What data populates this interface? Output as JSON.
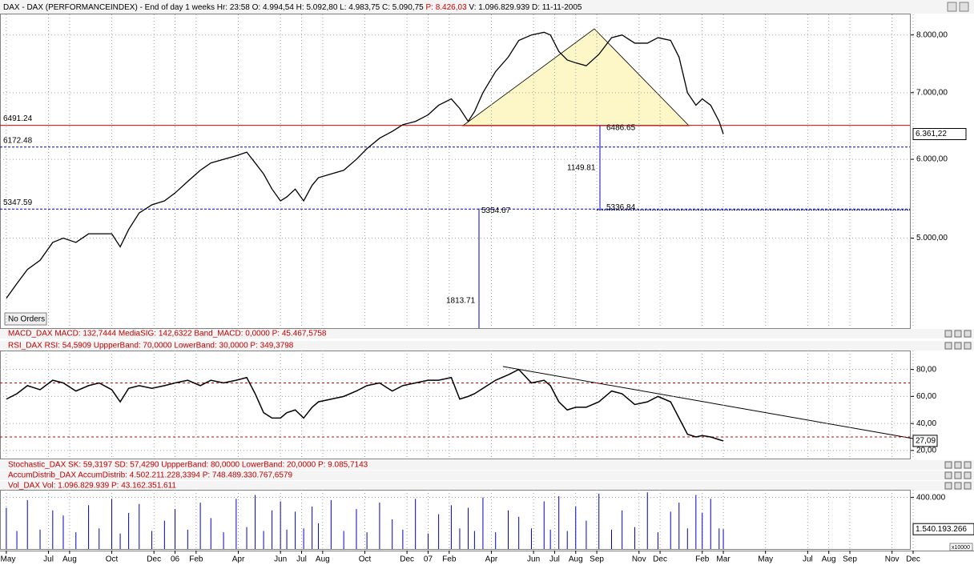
{
  "header": {
    "title": "DAX - DAX (PERFORMANCEINDEX) - End of day 1 weeks Hr: 23:58  O: 4.994,54  H: 5.092,80  L: 4.983,75  C: 5.090,75  ",
    "price_info": "P: 8.426,03",
    "rest": "  V: 1.096.829.939  D: 11-11-2005"
  },
  "xlim": [
    -0.3,
    43
  ],
  "xticks": [
    {
      "value": 0,
      "label": "May"
    },
    {
      "value": 2,
      "label": "Jul"
    },
    {
      "value": 3,
      "label": "Aug"
    },
    {
      "value": 5,
      "label": "Oct"
    },
    {
      "value": 7,
      "label": "Dec"
    },
    {
      "value": 8,
      "label": "06"
    },
    {
      "value": 9,
      "label": "Feb"
    },
    {
      "value": 11,
      "label": "Apr"
    },
    {
      "value": 13,
      "label": "Jun"
    },
    {
      "value": 14,
      "label": "Jul"
    },
    {
      "value": 15,
      "label": "Aug"
    },
    {
      "value": 17,
      "label": "Oct"
    },
    {
      "value": 19,
      "label": "Dec"
    },
    {
      "value": 20,
      "label": "07"
    },
    {
      "value": 21,
      "label": "Feb"
    },
    {
      "value": 23,
      "label": "Apr"
    },
    {
      "value": 25,
      "label": "Jun"
    },
    {
      "value": 26,
      "label": "Jul"
    },
    {
      "value": 27,
      "label": "Aug"
    },
    {
      "value": 28,
      "label": "Sep"
    },
    {
      "value": 30,
      "label": "Nov"
    },
    {
      "value": 31,
      "label": "Dec"
    },
    {
      "value": 33,
      "label": "Feb"
    },
    {
      "value": 34,
      "label": "Mar"
    },
    {
      "value": 36,
      "label": "May"
    },
    {
      "value": 38,
      "label": "Jul"
    },
    {
      "value": 39,
      "label": "Aug"
    },
    {
      "value": 40,
      "label": "Sep"
    },
    {
      "value": 42,
      "label": "Nov"
    },
    {
      "value": 43,
      "label": "Dec"
    }
  ],
  "x": [
    0,
    0.5,
    1,
    1.6,
    2.2,
    2.7,
    3.3,
    3.9,
    4.4,
    5,
    5.4,
    5.8,
    6.3,
    6.9,
    7.5,
    8,
    8.6,
    9.2,
    9.7,
    10.3,
    10.9,
    11.4,
    11.8,
    12.2,
    12.6,
    13,
    13.3,
    13.7,
    14.1,
    14.5,
    14.8,
    15.4,
    16,
    16.6,
    17.1,
    17.7,
    18.3,
    18.8,
    19.4,
    20,
    20.5,
    21.1,
    21.5,
    21.9,
    22.2,
    22.6,
    23.2,
    23.8,
    24.3,
    24.9,
    25.5,
    25.8,
    26.2,
    26.6,
    27,
    27.5,
    28.1,
    28.7,
    29.2,
    29.8,
    30.4,
    30.9,
    31.5,
    31.9,
    32.3,
    32.7,
    33,
    33.4,
    33.8,
    34
  ],
  "price": {
    "type": "line",
    "color": "#000000",
    "log": true,
    "ylim": [
      4060,
      8390
    ],
    "yticks": [
      {
        "value": 8000,
        "label": "8.000,00"
      },
      {
        "value": 7000,
        "label": "7.000,00"
      },
      {
        "value": 6000,
        "label": "6.000,00"
      },
      {
        "value": 5000,
        "label": "5.000,00"
      }
    ],
    "values": [
      4350,
      4500,
      4650,
      4750,
      4950,
      5000,
      4950,
      5050,
      5050,
      5050,
      4900,
      5100,
      5300,
      5400,
      5450,
      5550,
      5700,
      5850,
      5950,
      6000,
      6050,
      6100,
      5950,
      5800,
      5600,
      5450,
      5500,
      5600,
      5450,
      5650,
      5750,
      5800,
      5850,
      6000,
      6150,
      6300,
      6400,
      6500,
      6550,
      6650,
      6800,
      6900,
      6750,
      6550,
      6700,
      7000,
      7350,
      7600,
      7900,
      8000,
      8050,
      8000,
      7700,
      7550,
      7500,
      7450,
      7650,
      7950,
      8000,
      7850,
      7850,
      7950,
      7900,
      7600,
      7000,
      6800,
      6900,
      6800,
      6550,
      6361.22
    ],
    "last_label": "6.361,22",
    "levels": [
      {
        "value": 6491.24,
        "color": "#e00000"
      },
      {
        "value": 6172.48,
        "color": "#0000cc"
      },
      {
        "value": 5347.59,
        "color": "#0000cc"
      }
    ],
    "measure_1": {
      "high": 6486.65,
      "low": 5336.84,
      "difference": 1149.81
    },
    "measure_2": {
      "high": 5354.67,
      "difference": 1813.71
    },
    "badge": "No Orders"
  },
  "macd_label": "MACD_DAX MACD: 132,7444  MediaSIG: 142,6322  Band_MACD: 0,0000  P: 45.467,5758",
  "rsi": {
    "type": "line",
    "color": "#000000",
    "label": "RSI_DAX RSI: 54,5909  UppperBand: 70,0000  LowerBand: 30,0000  P: 349,3798",
    "ylim": [
      14,
      94
    ],
    "yticks": [
      {
        "value": 80,
        "label": "80,00"
      },
      {
        "value": 60,
        "label": "60,00"
      },
      {
        "value": 40,
        "label": "40,00"
      },
      {
        "value": 20,
        "label": "20,00"
      }
    ],
    "bands": [
      70,
      30
    ],
    "values": [
      58,
      62,
      68,
      65,
      72,
      70,
      64,
      68,
      70,
      65,
      56,
      66,
      68,
      66,
      68,
      70,
      72,
      68,
      72,
      70,
      72,
      74,
      62,
      48,
      44,
      44,
      48,
      50,
      44,
      52,
      56,
      58,
      60,
      64,
      68,
      70,
      64,
      68,
      70,
      72,
      72,
      74,
      58,
      60,
      62,
      66,
      72,
      76,
      80,
      70,
      72,
      68,
      56,
      50,
      52,
      52,
      56,
      64,
      62,
      54,
      56,
      60,
      56,
      44,
      32,
      30,
      31,
      30,
      28,
      27.09
    ],
    "last_label": "27,09"
  },
  "stochastic_label": "Stochastic_DAX SK: 59,3197  SD: 57,4290  UppperBand: 80,0000  LowerBand: 20,0000  P: 9.085,7143",
  "accum_label": "AccumDistrib_DAX AccumDistrib: 4.502.211.228,3394  P: 748.489.330.767,6579",
  "volume": {
    "type": "bar",
    "color": "#0000cc",
    "label": "Vol_DAX Vol: 1.096.829.939  P: 43.162.351.611",
    "ylim": [
      0,
      4600000000
    ],
    "yticks": [
      {
        "value": 4000000000,
        "label": "400.000"
      }
    ],
    "multiplier": "x10000",
    "values": [
      3200000000.0,
      1400000000.0,
      3800000000.0,
      1500000000.0,
      3000000000.0,
      2600000000.0,
      1300000000.0,
      3400000000.0,
      1600000000.0,
      3900000000.0,
      1200000000.0,
      2800000000.0,
      3500000000.0,
      1400000000.0,
      2200000000.0,
      3100000000.0,
      1500000000.0,
      3600000000.0,
      2400000000.0,
      1300000000.0,
      3900000000.0,
      1700000000.0,
      4200000000.0,
      1400000000.0,
      3000000000.0,
      3700000000.0,
      1500000000.0,
      2900000000.0,
      1600000000.0,
      3300000000.0,
      2000000000.0,
      3800000000.0,
      1400000000.0,
      3100000000.0,
      1300000000.0,
      3600000000.0,
      2300000000.0,
      1500000000.0,
      3900000000.0,
      1200000000.0,
      2700000000.0,
      3400000000.0,
      1600000000.0,
      3200000000.0,
      1400000000.0,
      4000000000.0,
      1300000000.0,
      3000000000.0,
      2500000000.0,
      1600000000.0,
      3700000000.0,
      1500000000.0,
      4100000000.0,
      1400000000.0,
      3300000000.0,
      2200000000.0,
      4300000000.0,
      1500000000.0,
      3000000000.0,
      1700000000.0,
      4400000000.0,
      1300000000.0,
      2900000000.0,
      3600000000.0,
      1600000000.0,
      4200000000.0,
      2800000000.0,
      3900000000.0,
      1600000000.0,
      1540193266
    ],
    "last_label": "1.540.193.266"
  }
}
